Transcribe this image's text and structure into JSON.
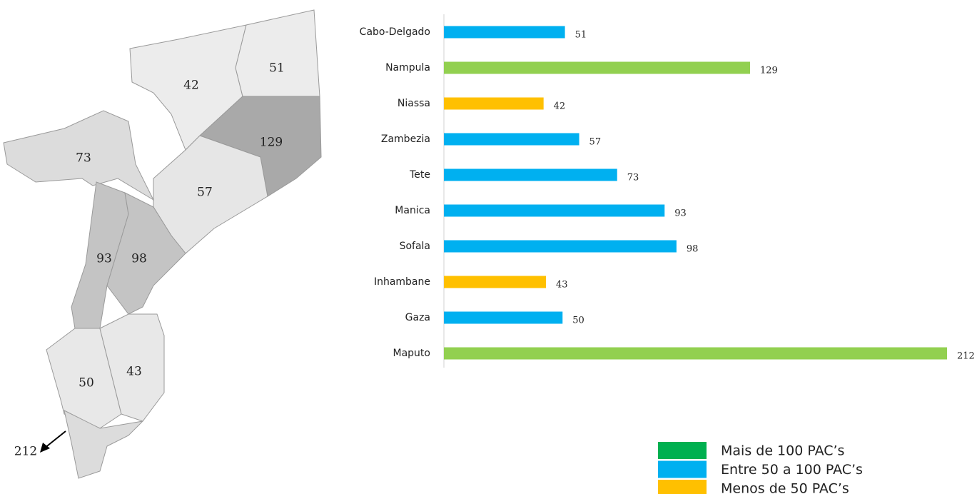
{
  "chart_data": {
    "type": "bar",
    "orientation": "horizontal",
    "categories": [
      "Cabo-Delgado",
      "Nampula",
      "Niassa",
      "Zambezia",
      "Tete",
      "Manica",
      "Sofala",
      "Inhambane",
      "Gaza",
      "Maputo"
    ],
    "values": [
      51,
      129,
      42,
      57,
      73,
      93,
      98,
      43,
      50,
      212
    ],
    "colors": [
      "#00b0f0",
      "#92d050",
      "#ffc000",
      "#00b0f0",
      "#00b0f0",
      "#00b0f0",
      "#00b0f0",
      "#ffc000",
      "#00b0f0",
      "#92d050"
    ],
    "xlim": [
      0,
      212
    ],
    "legend": [
      {
        "label": "Mais de 100 PAC’s",
        "color": "#00b050"
      },
      {
        "label": "Entre 50 a 100 PAC’s",
        "color": "#00b0f0"
      },
      {
        "label": "Menos de 50 PAC’s",
        "color": "#ffc000"
      }
    ]
  }
}
